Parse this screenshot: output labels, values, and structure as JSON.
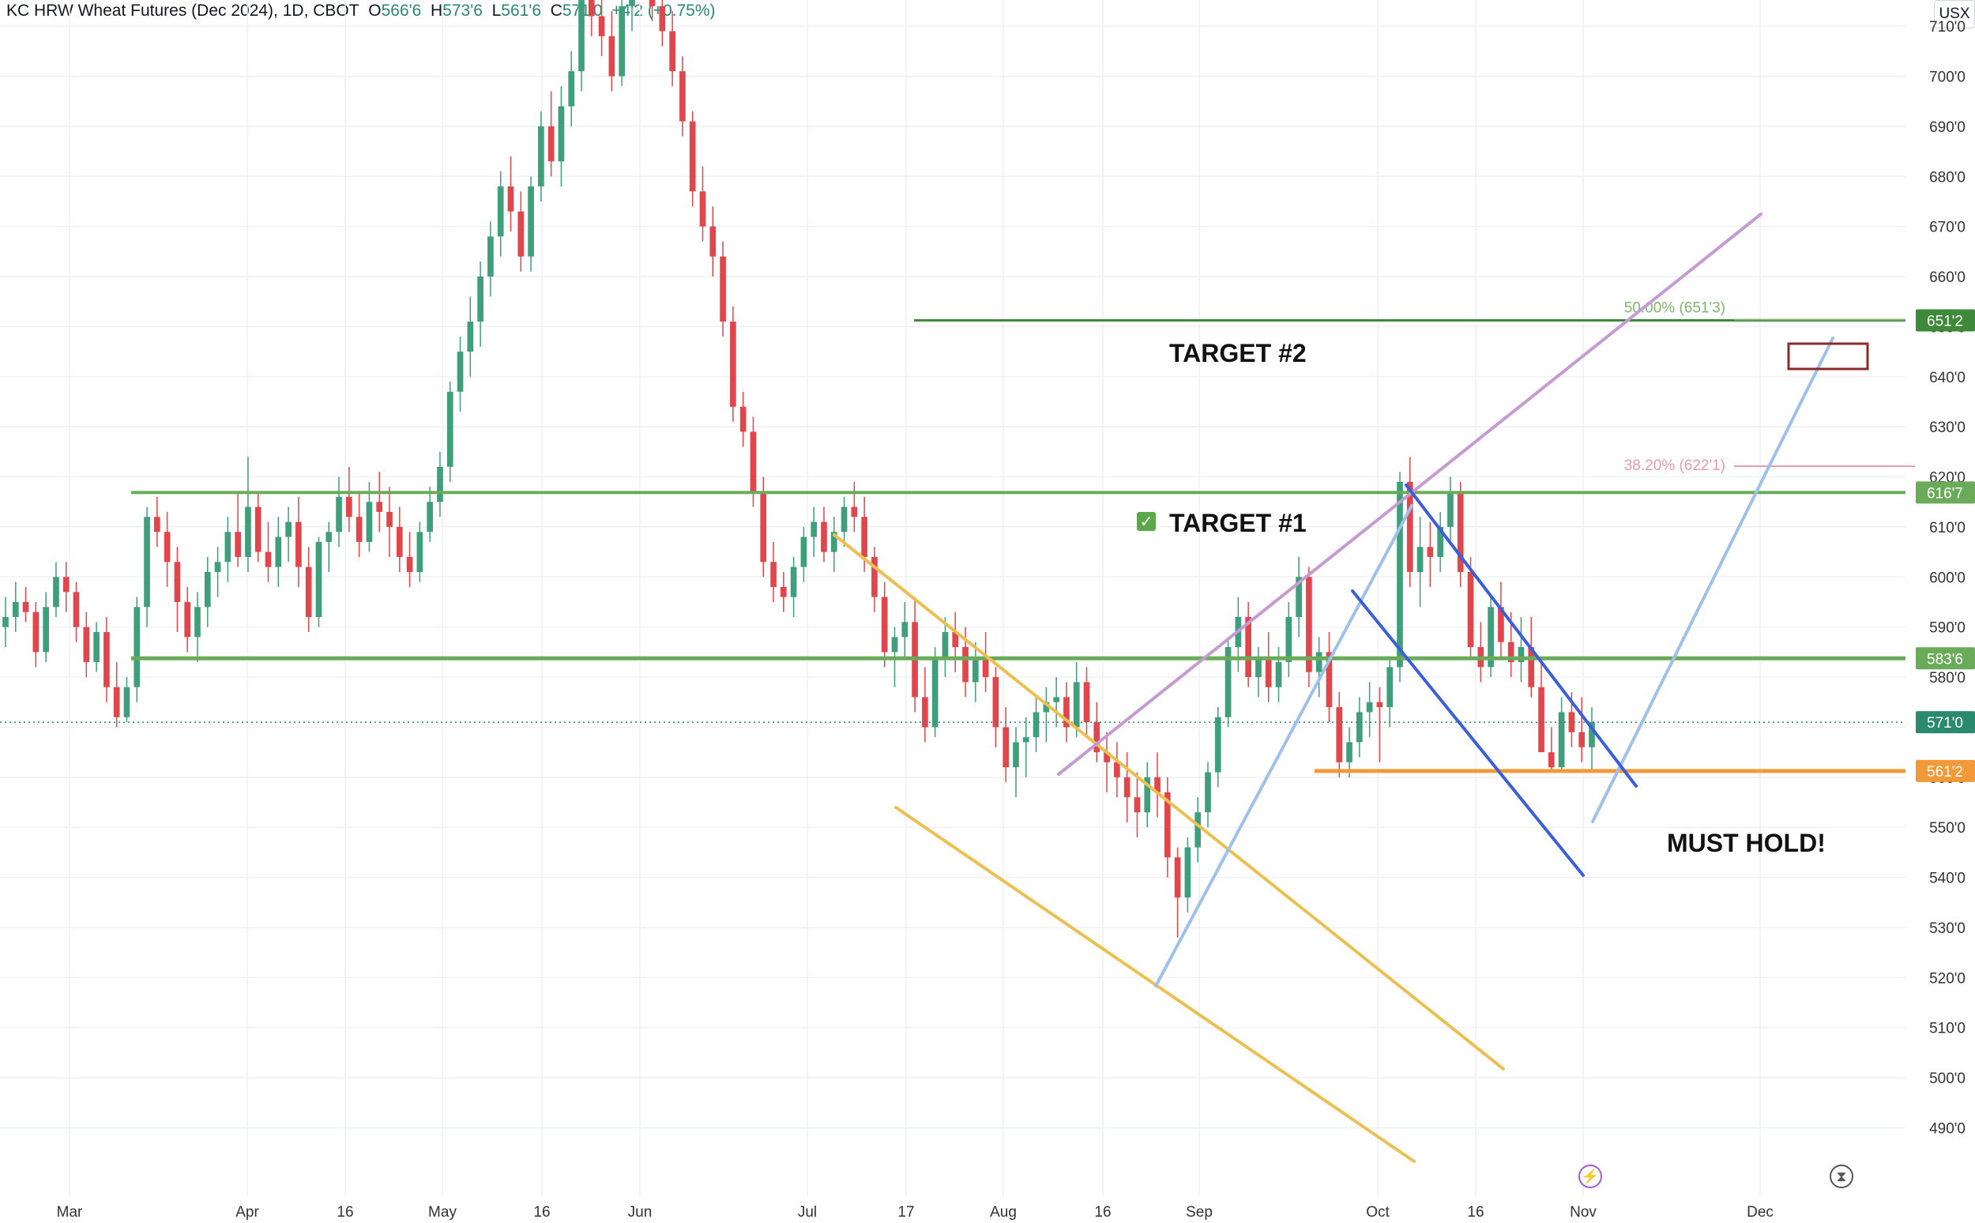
{
  "header": {
    "symbol": "KC HRW Wheat Futures (Dec 2024), 1D, CBOT",
    "o_label": "O",
    "o_val": "566'6",
    "h_label": "H",
    "h_val": "573'6",
    "l_label": "L",
    "l_val": "561'6",
    "c_label": "C",
    "c_val": "571'0",
    "change": "+4'2 (+0.75%)"
  },
  "currency": "USX",
  "colors": {
    "up": "#3f9e7c",
    "down": "#e0474c",
    "green_level": "#6aab5a",
    "orange_level": "#f39a38",
    "target2": "#3e8a3a",
    "purple": "#c69bd2",
    "yellow": "#ecc050",
    "blue": "#3b5fd6",
    "lightblue": "#9ec1ea"
  },
  "chart_data": {
    "type": "candlestick",
    "title": "KC HRW Wheat Futures (Dec 2024), 1D, CBOT",
    "x_ticks": [
      "Mar",
      "Apr",
      "16",
      "May",
      "16",
      "Jun",
      "Jul",
      "17",
      "Aug",
      "16",
      "Sep",
      "Oct",
      "16",
      "Nov",
      "Dec"
    ],
    "y_ticks": [
      "490'0",
      "500'0",
      "510'0",
      "520'0",
      "530'0",
      "540'0",
      "550'0",
      "560'0",
      "570'0",
      "580'0",
      "590'0",
      "600'0",
      "610'0",
      "620'0",
      "630'0",
      "640'0",
      "650'0",
      "660'0",
      "670'0",
      "680'0",
      "690'0",
      "700'0",
      "710'0"
    ],
    "ylim": [
      486,
      720
    ],
    "ohlc": [
      [
        590,
        596,
        586,
        592
      ],
      [
        592,
        599,
        589,
        595
      ],
      [
        595,
        598,
        591,
        593
      ],
      [
        593,
        595,
        582,
        585
      ],
      [
        585,
        597,
        583,
        594
      ],
      [
        594,
        603,
        592,
        600
      ],
      [
        600,
        603,
        593,
        597
      ],
      [
        597,
        599,
        587,
        590
      ],
      [
        590,
        593,
        580,
        583
      ],
      [
        583,
        591,
        581,
        589
      ],
      [
        589,
        592,
        575,
        578
      ],
      [
        578,
        583,
        570,
        572
      ],
      [
        572,
        580,
        571,
        578
      ],
      [
        578,
        596,
        575,
        594
      ],
      [
        594,
        614,
        590,
        612
      ],
      [
        612,
        616,
        606,
        609
      ],
      [
        609,
        613,
        598,
        603
      ],
      [
        603,
        606,
        589,
        595
      ],
      [
        595,
        598,
        585,
        588
      ],
      [
        588,
        597,
        583,
        594
      ],
      [
        594,
        604,
        590,
        601
      ],
      [
        601,
        606,
        596,
        603
      ],
      [
        603,
        612,
        599,
        609
      ],
      [
        609,
        617,
        602,
        604
      ],
      [
        604,
        624,
        601,
        614
      ],
      [
        614,
        617,
        603,
        605
      ],
      [
        605,
        611,
        599,
        602
      ],
      [
        602,
        612,
        598,
        608
      ],
      [
        608,
        614,
        603,
        611
      ],
      [
        611,
        616,
        598,
        602
      ],
      [
        602,
        606,
        589,
        592
      ],
      [
        592,
        608,
        590,
        607
      ],
      [
        607,
        611,
        601,
        609
      ],
      [
        609,
        620,
        606,
        616
      ],
      [
        616,
        622,
        609,
        612
      ],
      [
        612,
        617,
        604,
        607
      ],
      [
        607,
        619,
        605,
        615
      ],
      [
        615,
        621,
        609,
        613
      ],
      [
        613,
        618,
        604,
        610
      ],
      [
        610,
        614,
        601,
        604
      ],
      [
        604,
        609,
        598,
        601
      ],
      [
        601,
        611,
        599,
        609
      ],
      [
        609,
        618,
        607,
        615
      ],
      [
        615,
        625,
        612,
        622
      ],
      [
        622,
        639,
        619,
        637
      ],
      [
        637,
        648,
        633,
        645
      ],
      [
        645,
        656,
        640,
        651
      ],
      [
        651,
        663,
        646,
        660
      ],
      [
        660,
        671,
        656,
        668
      ],
      [
        668,
        681,
        664,
        678
      ],
      [
        678,
        684,
        669,
        673
      ],
      [
        673,
        677,
        661,
        664
      ],
      [
        664,
        680,
        661,
        678
      ],
      [
        678,
        693,
        675,
        690
      ],
      [
        690,
        697,
        680,
        683
      ],
      [
        683,
        698,
        678,
        694
      ],
      [
        694,
        705,
        690,
        701
      ],
      [
        701,
        722,
        697,
        719
      ],
      [
        719,
        725,
        708,
        712
      ],
      [
        712,
        717,
        704,
        708
      ],
      [
        708,
        713,
        697,
        700
      ],
      [
        700,
        716,
        698,
        714
      ],
      [
        714,
        725,
        709,
        720
      ],
      [
        720,
        723,
        716,
        718
      ],
      [
        718,
        722,
        711,
        714
      ],
      [
        714,
        719,
        706,
        709
      ],
      [
        709,
        713,
        698,
        701
      ],
      [
        701,
        704,
        688,
        691
      ],
      [
        691,
        693,
        674,
        677
      ],
      [
        677,
        682,
        667,
        670
      ],
      [
        670,
        674,
        660,
        664
      ],
      [
        664,
        667,
        648,
        651
      ],
      [
        651,
        654,
        631,
        634
      ],
      [
        634,
        637,
        626,
        629
      ],
      [
        629,
        632,
        614,
        617
      ],
      [
        617,
        620,
        600,
        603
      ],
      [
        603,
        607,
        595,
        598
      ],
      [
        598,
        601,
        593,
        596
      ],
      [
        596,
        604,
        592,
        602
      ],
      [
        602,
        610,
        599,
        608
      ],
      [
        608,
        614,
        604,
        611
      ],
      [
        611,
        614,
        603,
        605
      ],
      [
        605,
        612,
        601,
        609
      ],
      [
        609,
        616,
        606,
        614
      ],
      [
        614,
        619,
        609,
        612
      ],
      [
        612,
        616,
        601,
        604
      ],
      [
        604,
        606,
        593,
        596
      ],
      [
        596,
        599,
        582,
        585
      ],
      [
        585,
        590,
        578,
        588
      ],
      [
        588,
        595,
        584,
        591
      ],
      [
        591,
        596,
        573,
        576
      ],
      [
        576,
        582,
        567,
        570
      ],
      [
        570,
        586,
        568,
        584
      ],
      [
        584,
        592,
        580,
        589
      ],
      [
        589,
        593,
        581,
        586
      ],
      [
        586,
        590,
        576,
        579
      ],
      [
        579,
        587,
        575,
        584
      ],
      [
        584,
        589,
        577,
        580
      ],
      [
        580,
        582,
        566,
        570
      ],
      [
        570,
        574,
        559,
        562
      ],
      [
        562,
        570,
        556,
        567
      ],
      [
        567,
        572,
        560,
        568
      ],
      [
        568,
        576,
        565,
        573
      ],
      [
        573,
        578,
        567,
        575
      ],
      [
        575,
        580,
        570,
        576
      ],
      [
        576,
        579,
        567,
        570
      ],
      [
        570,
        583,
        568,
        579
      ],
      [
        579,
        582,
        568,
        571
      ],
      [
        571,
        575,
        563,
        565
      ],
      [
        565,
        569,
        557,
        563
      ],
      [
        563,
        567,
        556,
        560
      ],
      [
        560,
        565,
        551,
        556
      ],
      [
        556,
        561,
        548,
        553
      ],
      [
        553,
        563,
        550,
        560
      ],
      [
        560,
        565,
        552,
        557
      ],
      [
        557,
        560,
        540,
        544
      ],
      [
        544,
        546,
        528,
        536
      ],
      [
        536,
        548,
        533,
        546
      ],
      [
        546,
        556,
        543,
        553
      ],
      [
        553,
        563,
        550,
        561
      ],
      [
        561,
        574,
        558,
        572
      ],
      [
        572,
        588,
        570,
        586
      ],
      [
        586,
        596,
        581,
        592
      ],
      [
        592,
        595,
        578,
        580
      ],
      [
        580,
        586,
        576,
        584
      ],
      [
        584,
        589,
        575,
        578
      ],
      [
        578,
        586,
        575,
        583
      ],
      [
        583,
        595,
        580,
        592
      ],
      [
        592,
        604,
        588,
        600
      ],
      [
        600,
        602,
        578,
        581
      ],
      [
        581,
        588,
        576,
        585
      ],
      [
        585,
        589,
        571,
        574
      ],
      [
        574,
        577,
        560,
        563
      ],
      [
        563,
        570,
        560,
        567
      ],
      [
        567,
        576,
        564,
        573
      ],
      [
        573,
        579,
        568,
        575
      ],
      [
        575,
        578,
        563,
        574
      ],
      [
        574,
        584,
        570,
        582
      ],
      [
        582,
        621,
        579,
        619
      ],
      [
        619,
        624,
        598,
        601
      ],
      [
        601,
        612,
        594,
        606
      ],
      [
        606,
        611,
        598,
        604
      ],
      [
        604,
        613,
        601,
        610
      ],
      [
        610,
        620,
        607,
        617
      ],
      [
        617,
        619,
        598,
        601
      ],
      [
        601,
        604,
        584,
        586
      ],
      [
        586,
        591,
        579,
        582
      ],
      [
        582,
        596,
        580,
        594
      ],
      [
        594,
        599,
        584,
        587
      ],
      [
        587,
        593,
        580,
        583
      ],
      [
        583,
        592,
        579,
        586
      ],
      [
        586,
        592,
        576,
        578
      ],
      [
        578,
        584,
        567,
        565
      ],
      [
        565,
        570,
        561,
        562
      ],
      [
        562,
        576,
        561,
        573
      ],
      [
        573,
        577,
        566,
        569
      ],
      [
        569,
        576,
        563,
        566
      ],
      [
        566,
        574,
        561,
        571
      ]
    ],
    "price_levels": [
      {
        "value": 651.25,
        "label": "651'2",
        "color": "#3e8a3a"
      },
      {
        "value": 616.875,
        "label": "616'7",
        "color": "#6aab5a"
      },
      {
        "value": 583.75,
        "label": "583'6",
        "color": "#6aab5a"
      },
      {
        "value": 571.0,
        "label": "571'0",
        "color": "#2a8a6d"
      },
      {
        "value": 561.25,
        "label": "561'2",
        "color": "#f39a38"
      }
    ],
    "fib_levels": [
      {
        "value": 651.375,
        "label": "50.00% (651'3)",
        "color": "#7fb56f"
      },
      {
        "value": 622.125,
        "label": "38.20% (622'1)",
        "color": "#e89ab0"
      }
    ],
    "annotations": {
      "target2": "TARGET #2",
      "target1": "TARGET #1",
      "must_hold": "MUST HOLD!",
      "check": "✅"
    }
  }
}
